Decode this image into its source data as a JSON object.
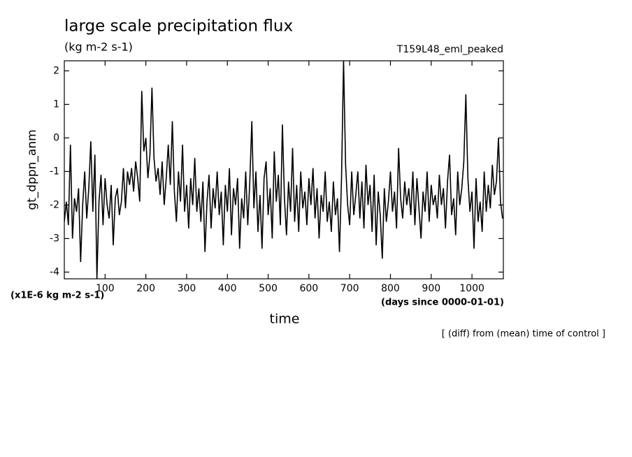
{
  "chart_data": {
    "type": "line",
    "title": "large scale precipitation flux",
    "subtitle": "(kg m-2 s-1)",
    "experiment": "T159L48_eml_peaked",
    "ylabel": "gt_dppn_anm",
    "yunits": "(x1E-6 kg m-2 s-1)",
    "xlabel": "time",
    "xunits": "(days since 0000-01-01)",
    "note": "[ (diff) from (mean) time of control ]",
    "xlim": [
      0,
      1077
    ],
    "ylim": [
      -4.2,
      2.3
    ],
    "xticks": [
      100,
      200,
      300,
      400,
      500,
      600,
      700,
      800,
      900,
      1000
    ],
    "yticks": [
      -4,
      -3,
      -2,
      -1,
      0,
      1,
      2
    ],
    "x": [
      0,
      5,
      10,
      15,
      20,
      25,
      30,
      35,
      40,
      45,
      50,
      55,
      60,
      65,
      70,
      75,
      80,
      85,
      90,
      95,
      100,
      105,
      110,
      115,
      120,
      125,
      130,
      135,
      140,
      145,
      150,
      155,
      160,
      165,
      170,
      175,
      180,
      185,
      190,
      195,
      200,
      205,
      210,
      215,
      220,
      225,
      230,
      235,
      240,
      245,
      250,
      255,
      260,
      265,
      270,
      275,
      280,
      285,
      290,
      295,
      300,
      305,
      310,
      315,
      320,
      325,
      330,
      335,
      340,
      345,
      350,
      355,
      360,
      365,
      370,
      375,
      380,
      385,
      390,
      395,
      400,
      405,
      410,
      415,
      420,
      425,
      430,
      435,
      440,
      445,
      450,
      455,
      460,
      465,
      470,
      475,
      480,
      485,
      490,
      495,
      500,
      505,
      510,
      515,
      520,
      525,
      530,
      535,
      540,
      545,
      550,
      555,
      560,
      565,
      570,
      575,
      580,
      585,
      590,
      595,
      600,
      605,
      610,
      615,
      620,
      625,
      630,
      635,
      640,
      645,
      650,
      655,
      660,
      665,
      670,
      675,
      680,
      685,
      690,
      695,
      700,
      705,
      710,
      715,
      720,
      725,
      730,
      735,
      740,
      745,
      750,
      755,
      760,
      765,
      770,
      775,
      780,
      785,
      790,
      795,
      800,
      805,
      810,
      815,
      820,
      825,
      830,
      835,
      840,
      845,
      850,
      855,
      860,
      865,
      870,
      875,
      880,
      885,
      890,
      895,
      900,
      905,
      910,
      915,
      920,
      925,
      930,
      935,
      940,
      945,
      950,
      955,
      960,
      965,
      970,
      975,
      980,
      985,
      990,
      995,
      1000,
      1005,
      1010,
      1015,
      1020,
      1025,
      1030,
      1035,
      1040,
      1045,
      1050,
      1055,
      1060,
      1065,
      1070,
      1075
    ],
    "series": [
      {
        "color": "#000000",
        "values": [
          -2.5,
          -1.9,
          -2.6,
          -0.2,
          -3.0,
          -1.8,
          -2.2,
          -1.5,
          -3.7,
          -2.0,
          -1.0,
          -2.4,
          -1.5,
          -0.1,
          -2.2,
          -0.5,
          -4.2,
          -1.9,
          -1.1,
          -2.6,
          -1.2,
          -2.0,
          -2.4,
          -1.4,
          -3.2,
          -1.8,
          -1.5,
          -2.3,
          -1.9,
          -0.9,
          -2.1,
          -1.0,
          -1.4,
          -0.9,
          -1.6,
          -0.7,
          -1.2,
          -1.9,
          1.4,
          -0.4,
          0.0,
          -1.2,
          -0.5,
          1.5,
          -0.6,
          -1.3,
          -0.9,
          -1.7,
          -0.7,
          -2.0,
          -1.2,
          -0.2,
          -1.4,
          0.5,
          -1.6,
          -2.5,
          -1.0,
          -1.9,
          -0.2,
          -2.2,
          -1.4,
          -2.7,
          -1.2,
          -2.0,
          -0.6,
          -2.2,
          -1.5,
          -2.5,
          -1.3,
          -3.4,
          -1.9,
          -1.1,
          -2.7,
          -1.5,
          -2.1,
          -1.0,
          -2.3,
          -1.6,
          -3.2,
          -1.4,
          -2.2,
          -0.9,
          -2.9,
          -1.5,
          -2.0,
          -1.2,
          -3.3,
          -1.8,
          -2.4,
          -1.0,
          -2.6,
          -1.3,
          0.5,
          -2.1,
          -1.0,
          -2.8,
          -1.7,
          -3.3,
          -1.2,
          -0.7,
          -2.3,
          -1.5,
          -3.0,
          -0.4,
          -1.9,
          -1.1,
          -2.6,
          0.4,
          -1.8,
          -2.9,
          -1.3,
          -2.2,
          -0.3,
          -2.5,
          -1.4,
          -2.8,
          -1.0,
          -2.1,
          -1.6,
          -2.6,
          -1.2,
          -2.0,
          -0.9,
          -2.4,
          -1.5,
          -3.0,
          -1.7,
          -2.2,
          -1.0,
          -2.5,
          -1.9,
          -2.8,
          -1.3,
          -2.3,
          -1.8,
          -3.4,
          -1.2,
          2.3,
          -0.8,
          -2.0,
          -2.6,
          -1.0,
          -2.3,
          -1.7,
          -1.0,
          -2.4,
          -1.3,
          -2.7,
          -0.8,
          -2.0,
          -1.4,
          -2.8,
          -1.1,
          -3.2,
          -1.6,
          -2.3,
          -3.6,
          -1.5,
          -2.5,
          -1.9,
          -1.0,
          -2.2,
          -1.6,
          -2.7,
          -0.3,
          -1.8,
          -2.4,
          -1.3,
          -2.0,
          -1.5,
          -2.3,
          -1.0,
          -2.6,
          -1.2,
          -2.1,
          -3.0,
          -1.6,
          -2.2,
          -1.0,
          -2.5,
          -1.4,
          -2.0,
          -1.7,
          -2.4,
          -1.1,
          -2.0,
          -1.5,
          -2.7,
          -1.3,
          -0.5,
          -2.3,
          -1.8,
          -2.9,
          -1.0,
          -2.0,
          -1.5,
          -0.7,
          1.3,
          -1.2,
          -2.2,
          -1.6,
          -3.3,
          -1.2,
          -2.5,
          -1.9,
          -2.8,
          -1.0,
          -2.2,
          -1.4,
          -2.1,
          -0.8,
          -1.7,
          -1.3,
          0.0,
          -1.9,
          -2.4
        ]
      }
    ]
  }
}
